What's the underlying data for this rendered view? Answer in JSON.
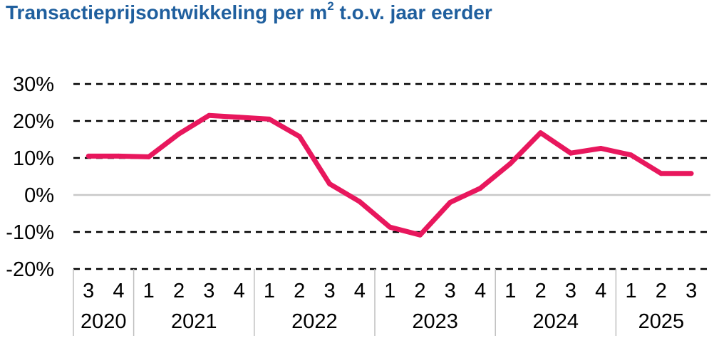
{
  "title": {
    "main": "Transactieprijsontwikkeling per m",
    "superscript": "2",
    "rest": " t.o.v. jaar eerder"
  },
  "colors": {
    "title": "#1f5f9e",
    "series": "#e8175d",
    "gridline": "#000000",
    "zero_line": "#c8c8c8",
    "axis": "#bfbfbf"
  },
  "chart_data": {
    "type": "line",
    "title": "Transactieprijsontwikkeling per m² t.o.v. jaar eerder",
    "xlabel": "",
    "ylabel": "",
    "ylim": [
      -20,
      30
    ],
    "yticks": [
      -20,
      -10,
      0,
      10,
      20,
      30
    ],
    "ytick_labels": [
      "-20%",
      "-10%",
      "0%",
      "10%",
      "20%",
      "30%"
    ],
    "grid": "dashed horizontal",
    "legend": "none",
    "categories": [
      "3",
      "4",
      "1",
      "2",
      "3",
      "4",
      "1",
      "2",
      "3",
      "4",
      "1",
      "2",
      "3",
      "4",
      "1",
      "2",
      "3",
      "4",
      "1",
      "2",
      "3"
    ],
    "year_groups": [
      {
        "label": "2020",
        "count": 2
      },
      {
        "label": "2021",
        "count": 4
      },
      {
        "label": "2022",
        "count": 4
      },
      {
        "label": "2023",
        "count": 4
      },
      {
        "label": "2024",
        "count": 4
      },
      {
        "label": "2025",
        "count": 3
      }
    ],
    "series": [
      {
        "values": [
          10.5,
          10.5,
          10.3,
          16.5,
          21.5,
          21.0,
          20.5,
          15.8,
          3.0,
          -1.8,
          -8.7,
          -10.8,
          -2.0,
          1.8,
          8.5,
          16.8,
          11.3,
          12.6,
          10.8,
          5.8,
          5.8
        ]
      }
    ]
  }
}
